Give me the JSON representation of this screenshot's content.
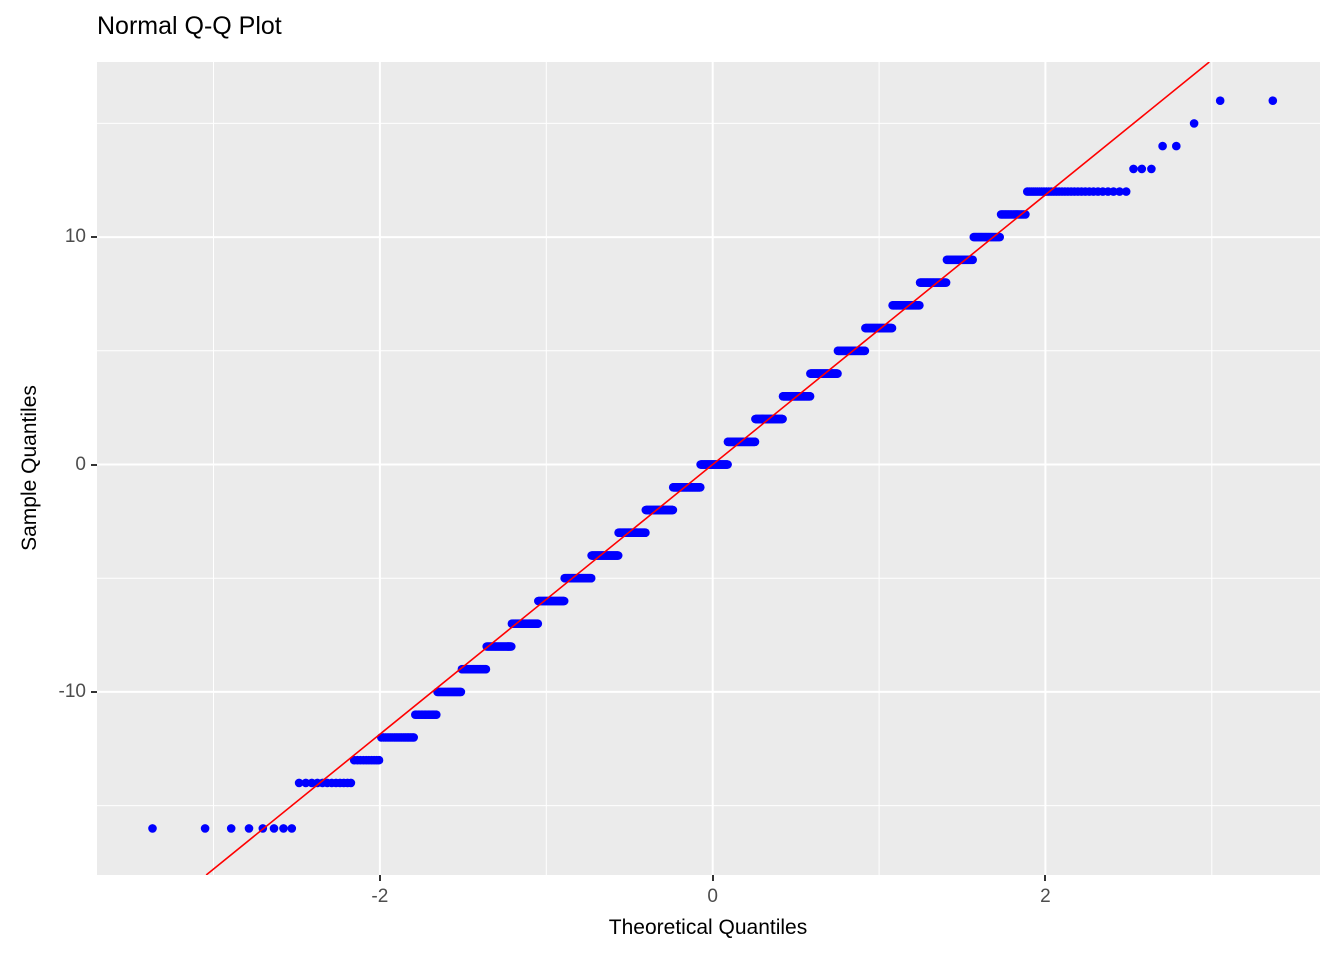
{
  "chart_data": {
    "type": "scatter",
    "title": "Normal Q-Q Plot",
    "xlabel": "Theoretical Quantiles",
    "ylabel": "Sample Quantiles",
    "x_tick_labels": [
      "-2",
      "0",
      "2"
    ],
    "x_tick_values": [
      -2,
      0,
      2
    ],
    "y_tick_labels": [
      "-10",
      "0",
      "10"
    ],
    "y_tick_values": [
      -10,
      0,
      10
    ],
    "x_minor_gridlines": [
      -3,
      -1,
      1,
      3
    ],
    "y_minor_gridlines": [
      -15,
      -5,
      5,
      15
    ],
    "xlim": [
      -3.7,
      3.65
    ],
    "ylim": [
      -18.05,
      17.7
    ],
    "grid": "on",
    "legend": "none",
    "n_points": 1313,
    "plotting_position": "(i - 0.5) / n",
    "sample_value_counts": [
      [
        -16,
        8
      ],
      [
        -14,
        12
      ],
      [
        -13,
        10
      ],
      [
        -12,
        18
      ],
      [
        -11,
        16
      ],
      [
        -10,
        22
      ],
      [
        -9,
        28
      ],
      [
        -8,
        35
      ],
      [
        -7,
        44
      ],
      [
        -6,
        52
      ],
      [
        -5,
        61
      ],
      [
        -4,
        69
      ],
      [
        -3,
        76
      ],
      [
        -2,
        82
      ],
      [
        -1,
        85
      ],
      [
        0,
        86
      ],
      [
        1,
        85
      ],
      [
        2,
        82
      ],
      [
        3,
        76
      ],
      [
        4,
        69
      ],
      [
        5,
        61
      ],
      [
        6,
        52
      ],
      [
        7,
        44
      ],
      [
        8,
        35
      ],
      [
        9,
        28
      ],
      [
        10,
        22
      ],
      [
        11,
        16
      ],
      [
        12,
        31
      ],
      [
        13,
        3
      ],
      [
        14,
        2
      ],
      [
        15,
        1
      ],
      [
        16,
        2
      ]
    ],
    "reference_line": {
      "slope": 5.93,
      "intercept": 0,
      "color": "#ff0000"
    },
    "point_color": "#0000ff",
    "panel_background": "#ebebeb",
    "gridline_color": "#ffffff",
    "tick_color": "#333333",
    "tick_label_color": "#4d4d4d",
    "text_color": "#000000"
  }
}
